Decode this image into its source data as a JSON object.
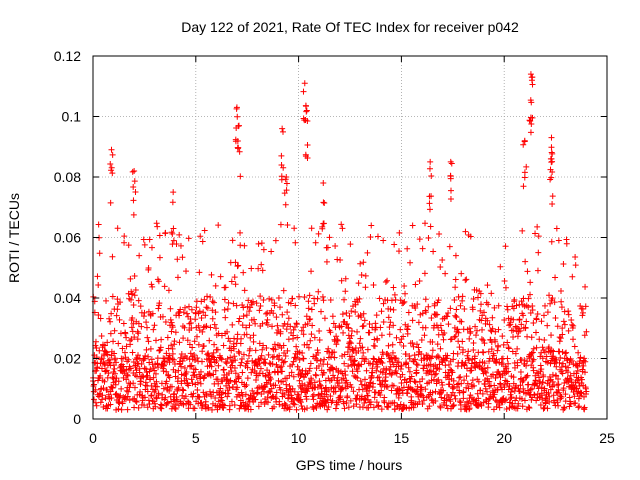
{
  "chart_data": {
    "type": "scatter",
    "title": "Day 122 of 2021, Rate Of TEC Index for receiver p042",
    "xlabel": "GPS time / hours",
    "ylabel": "ROTI / TECUs",
    "xlim": [
      0,
      25
    ],
    "ylim": [
      0,
      0.12
    ],
    "xticks": [
      0,
      5,
      10,
      15,
      20,
      25
    ],
    "xtick_labels": [
      "0",
      "5",
      "10",
      "15",
      "20",
      "25"
    ],
    "yticks": [
      0,
      0.02,
      0.04,
      0.06,
      0.08,
      0.1,
      0.12
    ],
    "ytick_labels": [
      "0",
      "0.02",
      "0.04",
      "0.06",
      "0.08",
      "0.1",
      "0.12"
    ],
    "grid": true,
    "marker": "+",
    "color": "#ff0000",
    "series": [
      {
        "name": "ROTI",
        "x_range_hours": [
          0,
          24
        ],
        "baseline_band": [
          0.003,
          0.02
        ],
        "typical_max": 0.065,
        "peaks": [
          {
            "x": 0.9,
            "y": 0.089
          },
          {
            "x": 2.0,
            "y": 0.082
          },
          {
            "x": 3.9,
            "y": 0.075
          },
          {
            "x": 7.0,
            "y": 0.103
          },
          {
            "x": 7.1,
            "y": 0.097
          },
          {
            "x": 9.2,
            "y": 0.096
          },
          {
            "x": 9.4,
            "y": 0.08
          },
          {
            "x": 10.3,
            "y": 0.111
          },
          {
            "x": 10.4,
            "y": 0.102
          },
          {
            "x": 11.2,
            "y": 0.078
          },
          {
            "x": 16.4,
            "y": 0.085
          },
          {
            "x": 17.4,
            "y": 0.085
          },
          {
            "x": 21.0,
            "y": 0.092
          },
          {
            "x": 21.3,
            "y": 0.114
          },
          {
            "x": 21.35,
            "y": 0.112
          },
          {
            "x": 22.3,
            "y": 0.093
          },
          {
            "x": 22.3,
            "y": 0.086
          }
        ]
      }
    ]
  }
}
